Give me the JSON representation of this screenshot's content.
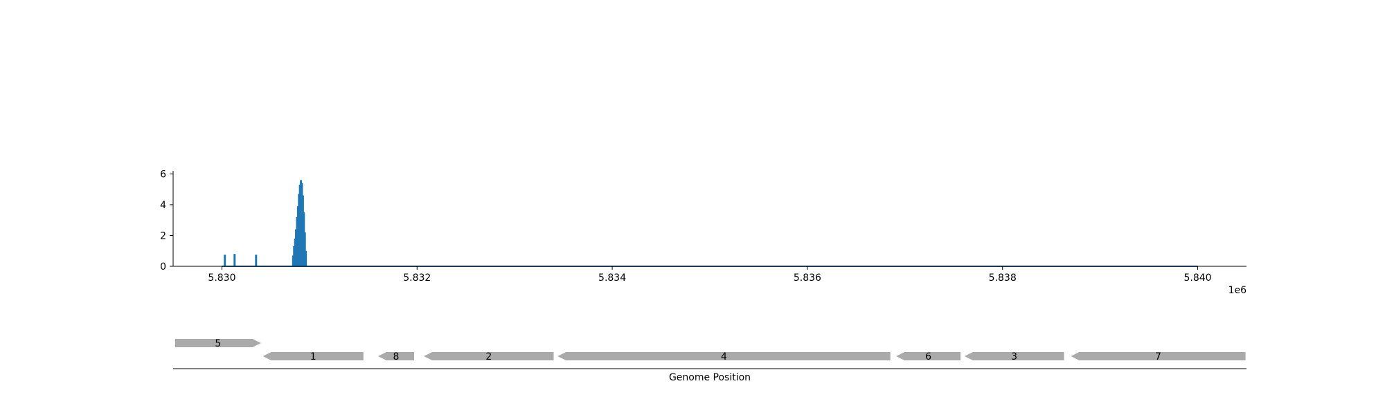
{
  "chart_data": [
    {
      "type": "bar",
      "title": "",
      "xlabel": "",
      "ylabel": "",
      "xlim": [
        5829500,
        5840500
      ],
      "ylim": [
        0,
        6.2
      ],
      "x_ticks": [
        5830000,
        5832000,
        5834000,
        5836000,
        5838000,
        5840000
      ],
      "x_tick_labels": [
        "5.830",
        "5.832",
        "5.834",
        "5.836",
        "5.838",
        "5.840"
      ],
      "x_offset_label": "1e6",
      "y_ticks": [
        0,
        2,
        4,
        6
      ],
      "y_tick_labels": [
        "0",
        "2",
        "4",
        "6"
      ],
      "spines": [
        "left",
        "bottom"
      ],
      "grid": false,
      "color": "#1f77b4",
      "x": [
        5830030,
        5830130,
        5830350,
        5830730,
        5830740,
        5830750,
        5830760,
        5830770,
        5830780,
        5830790,
        5830800,
        5830810,
        5830820,
        5830830,
        5830840,
        5830850,
        5830860
      ],
      "values": [
        0.75,
        0.8,
        0.75,
        0.7,
        1.3,
        1.8,
        2.4,
        3.2,
        3.9,
        4.7,
        5.3,
        5.6,
        5.4,
        4.6,
        3.5,
        2.2,
        1.0
      ],
      "baseline": {
        "from": 5830000,
        "to": 5840000,
        "value": 0
      }
    },
    {
      "type": "gene_track",
      "xlabel": "Genome Position",
      "xlim": [
        5829500,
        5840500
      ],
      "color": "#aaaaaa",
      "genes": [
        {
          "label": "5",
          "start": 5829520,
          "end": 5830400,
          "strand": "+",
          "row": 0
        },
        {
          "label": "1",
          "start": 5830420,
          "end": 5831450,
          "strand": "-",
          "row": 1
        },
        {
          "label": "8",
          "start": 5831600,
          "end": 5831970,
          "strand": "-",
          "row": 1
        },
        {
          "label": "2",
          "start": 5832070,
          "end": 5833400,
          "strand": "-",
          "row": 1
        },
        {
          "label": "4",
          "start": 5833440,
          "end": 5836850,
          "strand": "-",
          "row": 1
        },
        {
          "label": "6",
          "start": 5836910,
          "end": 5837570,
          "strand": "-",
          "row": 1
        },
        {
          "label": "3",
          "start": 5837610,
          "end": 5838630,
          "strand": "-",
          "row": 1
        },
        {
          "label": "7",
          "start": 5838700,
          "end": 5840490,
          "strand": "-",
          "row": 1
        }
      ]
    }
  ]
}
